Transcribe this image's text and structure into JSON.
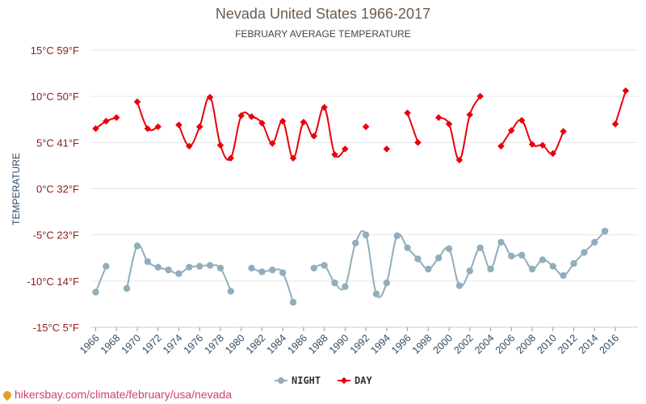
{
  "chart_data": {
    "type": "line",
    "title": "Nevada United States 1966-2017",
    "subtitle": "FEBRUARY AVERAGE TEMPERATURE",
    "ylabel": "TEMPERATURE",
    "ylim": [
      -15,
      15
    ],
    "y_ticks": [
      "15°C 59°F",
      "10°C 50°F",
      "5°C 41°F",
      "0°C 32°F",
      "-5°C 23°F",
      "-10°C 14°F",
      "-15°C 5°F"
    ],
    "y_tick_values": [
      15,
      10,
      5,
      0,
      -5,
      -10,
      -15
    ],
    "x_ticks": [
      "1966",
      "1968",
      "1970",
      "1972",
      "1974",
      "1976",
      "1978",
      "1980",
      "1982",
      "1984",
      "1986",
      "1988",
      "1990",
      "1992",
      "1994",
      "1996",
      "1998",
      "2000",
      "2002",
      "2004",
      "2006",
      "2008",
      "2010",
      "2012",
      "2014",
      "2016"
    ],
    "x_range": [
      1966,
      2017
    ],
    "grid": true,
    "legend_position": "bottom",
    "series": [
      {
        "name": "NIGHT",
        "color": "#90aebb",
        "points": [
          [
            1966,
            -11.2
          ],
          [
            1967,
            -8.4
          ],
          [
            1968,
            null
          ],
          [
            1969,
            -10.8
          ],
          [
            1970,
            -6.2
          ],
          [
            1971,
            -7.9
          ],
          [
            1972,
            -8.5
          ],
          [
            1973,
            -8.8
          ],
          [
            1974,
            -9.2
          ],
          [
            1975,
            -8.5
          ],
          [
            1976,
            -8.4
          ],
          [
            1977,
            -8.3
          ],
          [
            1978,
            -8.6
          ],
          [
            1979,
            -11.1
          ],
          [
            1980,
            null
          ],
          [
            1981,
            -8.6
          ],
          [
            1982,
            -9.0
          ],
          [
            1983,
            -8.8
          ],
          [
            1984,
            -9.1
          ],
          [
            1985,
            -12.3
          ],
          [
            1986,
            null
          ],
          [
            1987,
            -8.6
          ],
          [
            1988,
            -8.3
          ],
          [
            1989,
            -10.2
          ],
          [
            1990,
            -10.6
          ],
          [
            1991,
            -5.9
          ],
          [
            1992,
            -5.0
          ],
          [
            1993,
            -11.4
          ],
          [
            1994,
            -10.2
          ],
          [
            1995,
            -5.1
          ],
          [
            1996,
            -6.4
          ],
          [
            1997,
            -7.6
          ],
          [
            1998,
            -8.7
          ],
          [
            1999,
            -7.5
          ],
          [
            2000,
            -6.5
          ],
          [
            2001,
            -10.5
          ],
          [
            2002,
            -8.9
          ],
          [
            2003,
            -6.4
          ],
          [
            2004,
            -8.7
          ],
          [
            2005,
            -5.8
          ],
          [
            2006,
            -7.3
          ],
          [
            2007,
            -7.2
          ],
          [
            2008,
            -8.7
          ],
          [
            2009,
            -7.7
          ],
          [
            2010,
            -8.4
          ],
          [
            2011,
            -9.4
          ],
          [
            2012,
            -8.1
          ],
          [
            2013,
            -6.9
          ],
          [
            2014,
            -5.8
          ],
          [
            2015,
            -4.6
          ]
        ]
      },
      {
        "name": "DAY",
        "color": "#e8000b",
        "points": [
          [
            1966,
            6.5
          ],
          [
            1967,
            7.3
          ],
          [
            1968,
            7.7
          ],
          [
            1969,
            null
          ],
          [
            1970,
            9.4
          ],
          [
            1971,
            6.5
          ],
          [
            1972,
            6.7
          ],
          [
            1973,
            null
          ],
          [
            1974,
            6.9
          ],
          [
            1975,
            4.6
          ],
          [
            1976,
            6.7
          ],
          [
            1977,
            9.9
          ],
          [
            1978,
            4.7
          ],
          [
            1979,
            3.3
          ],
          [
            1980,
            7.9
          ],
          [
            1981,
            7.8
          ],
          [
            1982,
            7.1
          ],
          [
            1983,
            4.9
          ],
          [
            1984,
            7.3
          ],
          [
            1985,
            3.3
          ],
          [
            1986,
            7.2
          ],
          [
            1987,
            5.7
          ],
          [
            1988,
            8.8
          ],
          [
            1989,
            3.7
          ],
          [
            1990,
            4.3
          ],
          [
            1991,
            null
          ],
          [
            1992,
            6.7
          ],
          [
            1993,
            null
          ],
          [
            1994,
            4.3
          ],
          [
            1995,
            null
          ],
          [
            1996,
            8.2
          ],
          [
            1997,
            5.0
          ],
          [
            1998,
            null
          ],
          [
            1999,
            7.7
          ],
          [
            2000,
            7.0
          ],
          [
            2001,
            3.1
          ],
          [
            2002,
            8.0
          ],
          [
            2003,
            10.0
          ],
          [
            2004,
            null
          ],
          [
            2005,
            4.6
          ],
          [
            2006,
            6.3
          ],
          [
            2007,
            7.4
          ],
          [
            2008,
            4.8
          ],
          [
            2009,
            4.7
          ],
          [
            2010,
            3.8
          ],
          [
            2011,
            6.2
          ],
          [
            2012,
            null
          ],
          [
            2013,
            null
          ],
          [
            2014,
            null
          ],
          [
            2015,
            null
          ],
          [
            2016,
            7.0
          ],
          [
            2017,
            10.6
          ]
        ]
      }
    ]
  },
  "watermark": "hikersbay.com/climate/february/usa/nevada"
}
